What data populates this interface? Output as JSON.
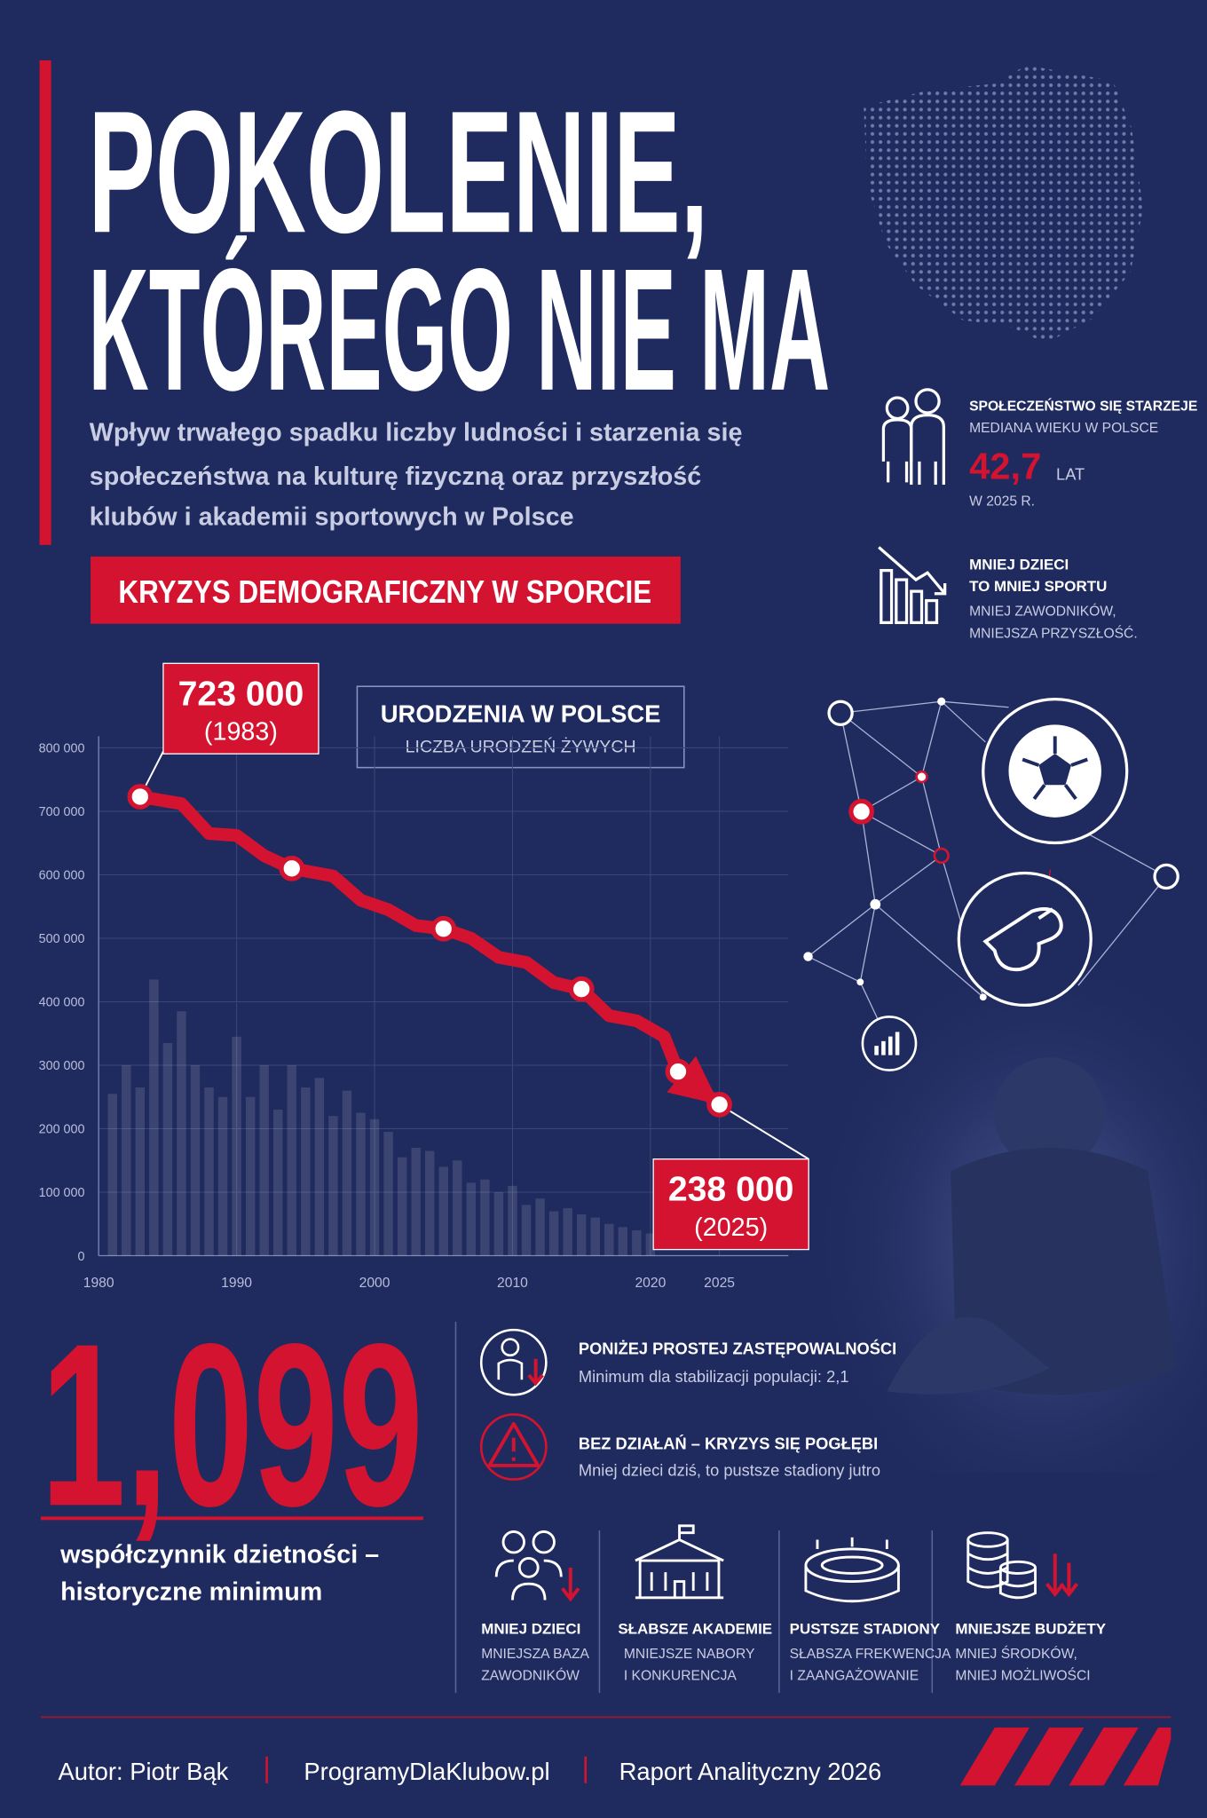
{
  "header": {
    "title_lines": [
      "POKOLENIE,",
      "KTÓREGO NIE MA"
    ],
    "subtitle_lines": [
      "Wpływ trwałego spadku liczby ludności i starzenia się",
      "społeczeństwa na kulturę fizyczną oraz przyszłość",
      "klubów i akademii sportowych w Polsce"
    ],
    "banner": "KRYZYS DEMOGRAFICZNY W SPORCIE"
  },
  "side": {
    "aging": {
      "title": "SPOŁECZEŃSTWO SIĘ STARZEJE",
      "label": "MEDIANA WIEKU W POLSCE",
      "value": "42,7",
      "unit": "LAT",
      "note": "W 2025 R."
    },
    "fewer": {
      "title_lines": [
        "MNIEJ DZIECI",
        "TO MNIEJ SPORTU"
      ],
      "text_lines": [
        "MNIEJ ZAWODNIKÓW,",
        "MNIEJSZA PRZYSZŁOŚĆ."
      ]
    }
  },
  "chart_data": {
    "type": "line",
    "title": "URODZENIA W POLSCE",
    "subtitle": "LICZBA URODZEŃ ŻYWYCH",
    "xlim": [
      1980,
      2030
    ],
    "xticks": [
      1980,
      1990,
      2000,
      2010,
      2020,
      2025
    ],
    "ylim": [
      0,
      800000
    ],
    "yticks": [
      0,
      {
        "value": 100000,
        "label": "100 000"
      },
      {
        "value": 200000,
        "label": "200 000"
      },
      {
        "value": 300000,
        "label": "300 000"
      },
      {
        "value": 400000,
        "label": "400 000"
      },
      {
        "value": 500000,
        "label": "500 000"
      },
      {
        "value": 600000,
        "label": "600 000"
      },
      {
        "value": 700000,
        "label": "700 000"
      },
      {
        "value": 800000,
        "label": "800 000"
      }
    ],
    "grid": true,
    "color": "#d3132f",
    "line": {
      "x": [
        1983,
        1986,
        1988,
        1990,
        1992,
        1994,
        1997,
        1999,
        2001,
        2003,
        2005,
        2007,
        2009,
        2011,
        2013,
        2015,
        2017,
        2019,
        2021,
        2022,
        2025
      ],
      "values": [
        723000,
        712000,
        665000,
        662000,
        630000,
        610000,
        598000,
        560000,
        545000,
        520000,
        515000,
        500000,
        470000,
        462000,
        430000,
        420000,
        378000,
        370000,
        345000,
        290000,
        238000
      ]
    },
    "highlights": {
      "x": [
        1983,
        1994,
        2005,
        2015,
        2022,
        2025
      ],
      "values": [
        723000,
        610000,
        515000,
        420000,
        290000,
        238000
      ],
      "value_labels": [
        "723 000",
        null,
        null,
        null,
        null,
        "238 000"
      ]
    },
    "annotations": [
      "(1983)",
      "(2025)"
    ],
    "bars": {
      "x": [
        1981,
        1982,
        1983,
        1984,
        1985,
        1986,
        1987,
        1988,
        1989,
        1990,
        1991,
        1992,
        1993,
        1994,
        1995,
        1996,
        1997,
        1998,
        1999,
        2000,
        2001,
        2002,
        2003,
        2004,
        2005,
        2006,
        2007,
        2008,
        2009,
        2010,
        2011,
        2012,
        2013,
        2014,
        2015,
        2016,
        2017,
        2018,
        2019,
        2020
      ],
      "values": [
        255000,
        300000,
        265000,
        435000,
        335000,
        385000,
        300000,
        265000,
        250000,
        345000,
        250000,
        300000,
        230000,
        300000,
        265000,
        280000,
        220000,
        260000,
        225000,
        215000,
        195000,
        155000,
        170000,
        165000,
        140000,
        150000,
        115000,
        120000,
        100000,
        110000,
        80000,
        90000,
        70000,
        75000,
        65000,
        60000,
        50000,
        45000,
        40000,
        35000
      ]
    }
  },
  "fertility": {
    "value": "1,099",
    "caption_lines": [
      "współczynnik dzietności –",
      "historyczne minimum"
    ]
  },
  "alerts": [
    {
      "title": "PONIŻEJ PROSTEJ ZASTĘPOWALNOŚCI",
      "text": "Minimum dla stabilizacji populacji: 2,1"
    },
    {
      "title": "BEZ DZIAŁAŃ – KRYZYS SIĘ POGŁĘBI",
      "text": "Mniej dzieci dziś, to pustsze stadiony jutro"
    }
  ],
  "impacts": [
    {
      "title": "MNIEJ DZIECI",
      "text_lines": [
        "MNIEJSZA BAZA",
        "ZAWODNIKÓW"
      ]
    },
    {
      "title": "SŁABSZE AKADEMIE",
      "text_lines": [
        "MNIEJSZE NABORY",
        "I KONKURENCJA"
      ]
    },
    {
      "title": "PUSTSZE STADIONY",
      "text_lines": [
        "SŁABSZA FREKWENCJA",
        "I ZAANGAŻOWANIE"
      ]
    },
    {
      "title": "MNIEJSZE BUDŻETY",
      "text_lines": [
        "MNIEJ ŚRODKÓW,",
        "MNIEJ MOŻLIWOŚCI"
      ]
    }
  ],
  "footer": {
    "items": [
      "Autor: Piotr Bąk",
      "ProgramyDlaKlubow.pl",
      "Raport Analityczny 2026"
    ]
  }
}
